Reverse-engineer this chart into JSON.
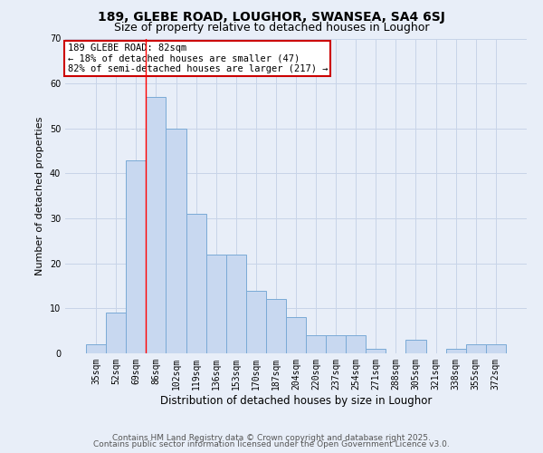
{
  "title": "189, GLEBE ROAD, LOUGHOR, SWANSEA, SA4 6SJ",
  "subtitle": "Size of property relative to detached houses in Loughor",
  "xlabel": "Distribution of detached houses by size in Loughor",
  "ylabel": "Number of detached properties",
  "categories": [
    "35sqm",
    "52sqm",
    "69sqm",
    "86sqm",
    "102sqm",
    "119sqm",
    "136sqm",
    "153sqm",
    "170sqm",
    "187sqm",
    "204sqm",
    "220sqm",
    "237sqm",
    "254sqm",
    "271sqm",
    "288sqm",
    "305sqm",
    "321sqm",
    "338sqm",
    "355sqm",
    "372sqm"
  ],
  "bar_values": [
    2,
    9,
    43,
    57,
    50,
    31,
    22,
    22,
    14,
    12,
    8,
    4,
    4,
    4,
    1,
    0,
    3,
    0,
    1,
    2,
    2
  ],
  "bar_color": "#c8d8f0",
  "bar_edge_color": "#7aaad6",
  "grid_color": "#c8d4e8",
  "background_color": "#e8eef8",
  "annotation_box_color": "#ffffff",
  "annotation_box_edge": "#cc0000",
  "annotation_title": "189 GLEBE ROAD: 82sqm",
  "annotation_line1": "← 18% of detached houses are smaller (47)",
  "annotation_line2": "82% of semi-detached houses are larger (217) →",
  "red_line_index": 3,
  "ylim": [
    0,
    70
  ],
  "yticks": [
    0,
    10,
    20,
    30,
    40,
    50,
    60,
    70
  ],
  "footer_line1": "Contains HM Land Registry data © Crown copyright and database right 2025.",
  "footer_line2": "Contains public sector information licensed under the Open Government Licence v3.0.",
  "title_fontsize": 10,
  "subtitle_fontsize": 9,
  "xlabel_fontsize": 8.5,
  "ylabel_fontsize": 8,
  "tick_fontsize": 7,
  "footer_fontsize": 6.5,
  "annotation_fontsize": 7.5
}
